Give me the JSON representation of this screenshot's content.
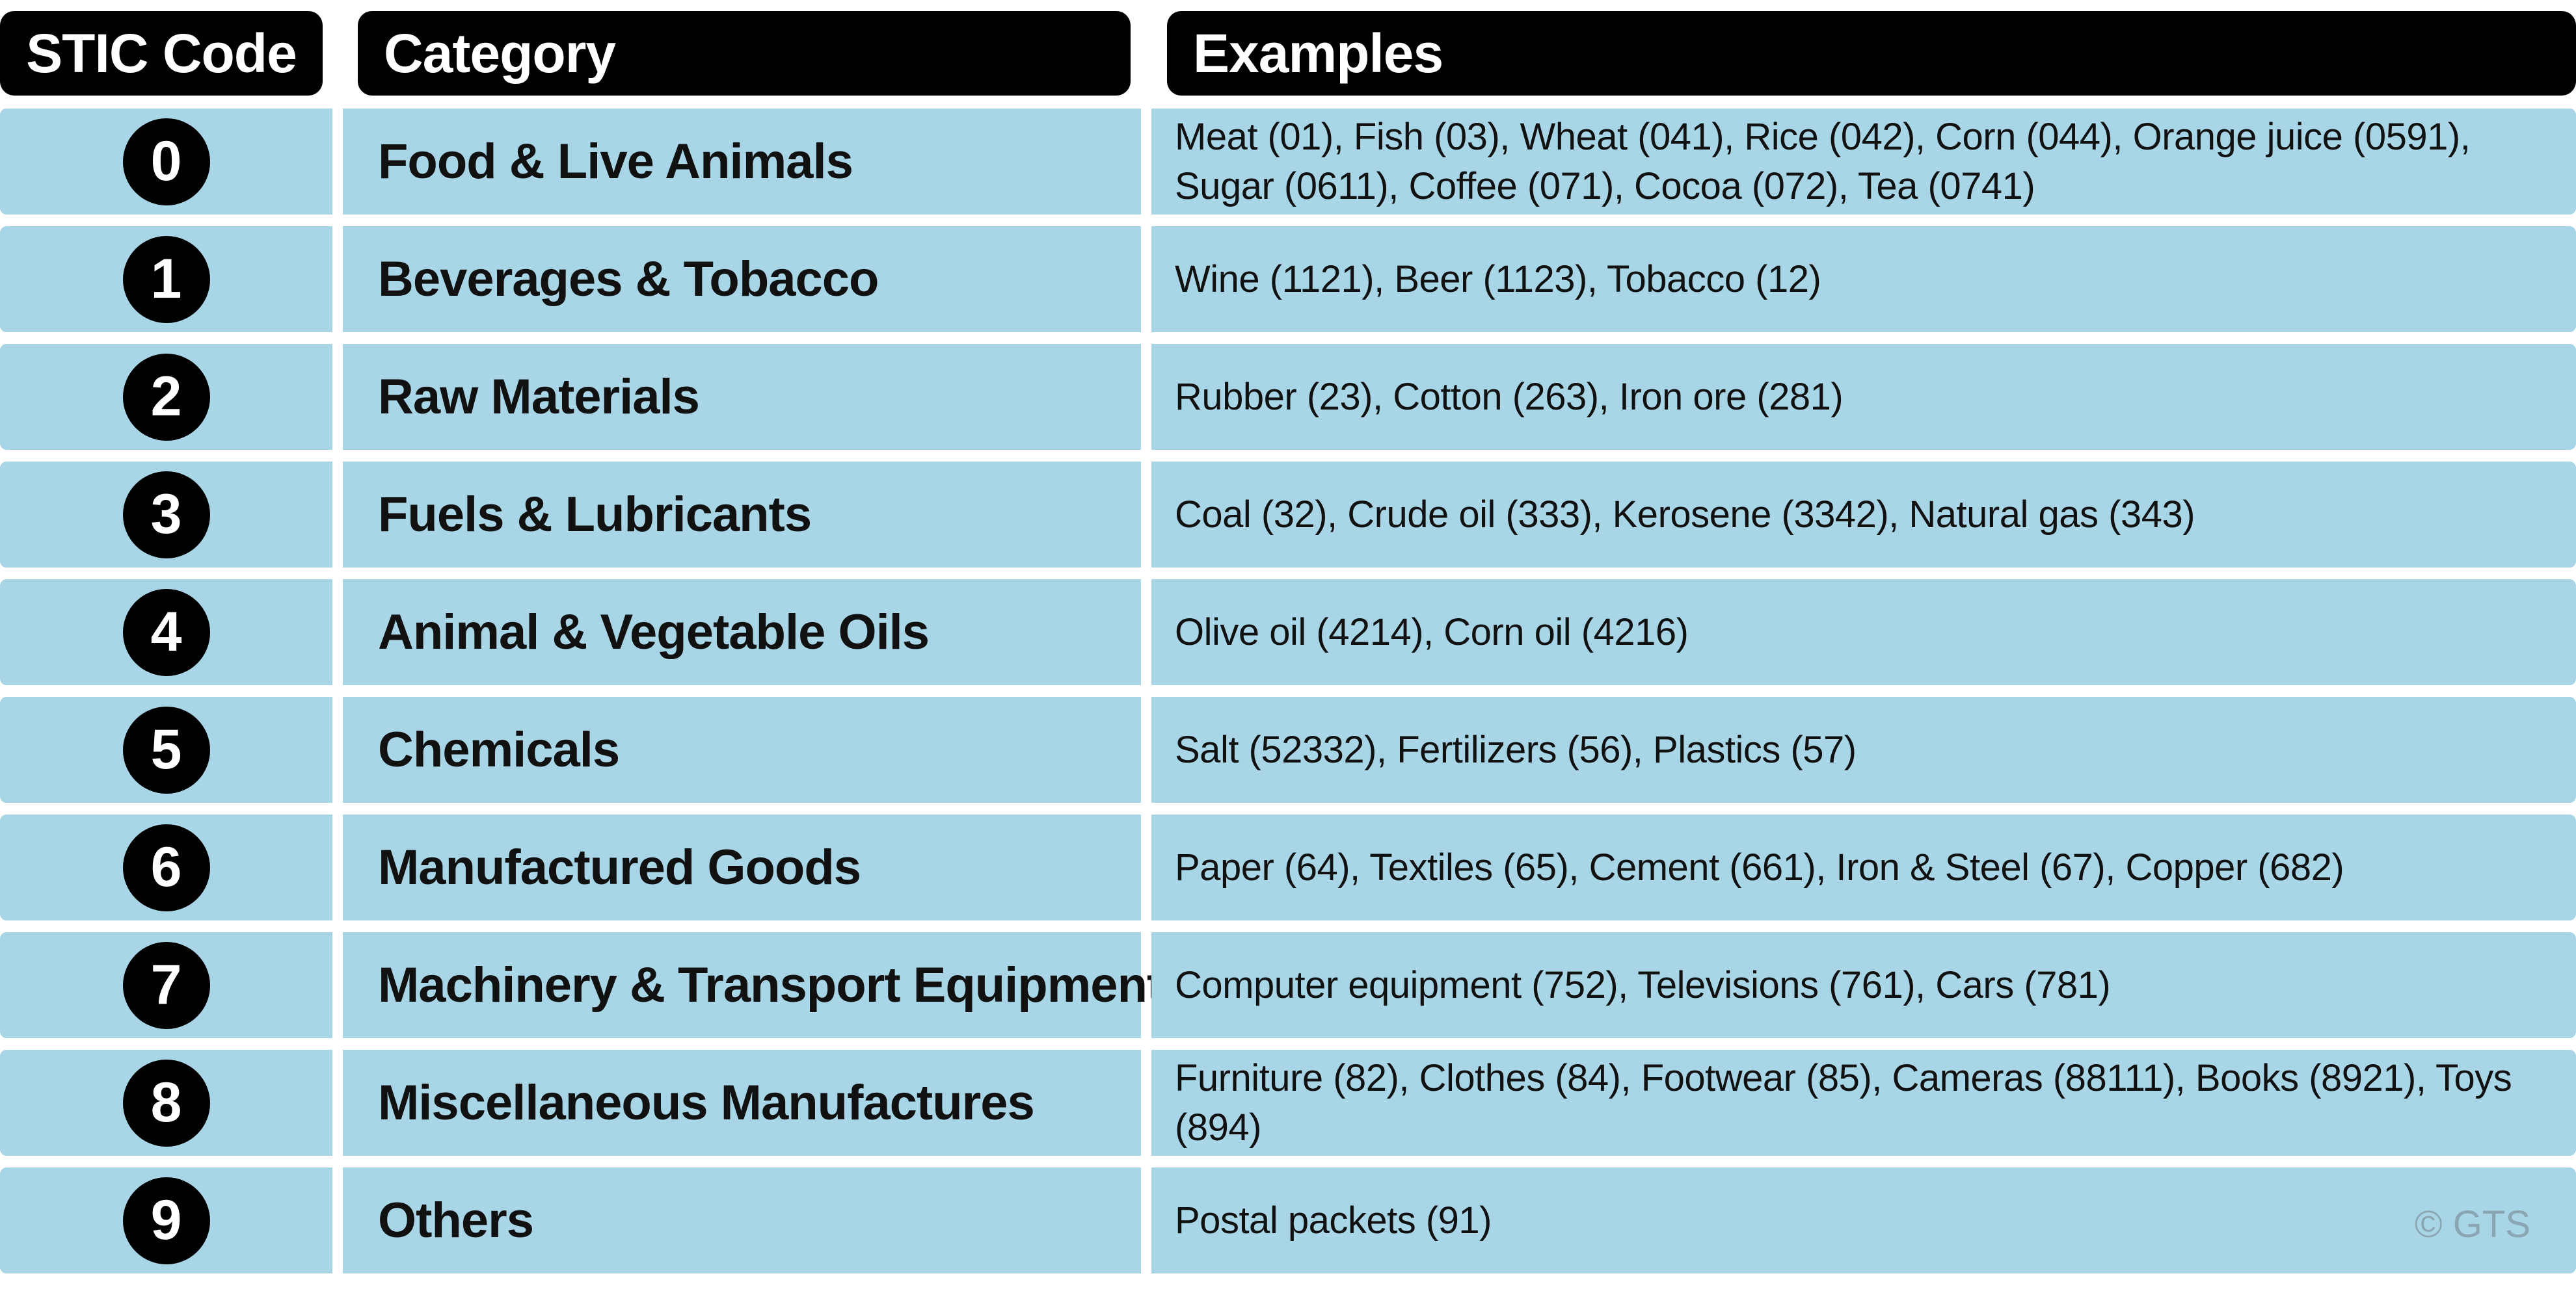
{
  "headers": {
    "code": "STIC Code",
    "category": "Category",
    "examples": "Examples"
  },
  "rows": [
    {
      "code": "0",
      "category": "Food & Live Animals",
      "examples": "Meat (01), Fish (03), Wheat (041), Rice (042), Corn (044), Orange juice (0591), Sugar (0611), Coffee (071), Cocoa (072), Tea (0741)"
    },
    {
      "code": "1",
      "category": "Beverages & Tobacco",
      "examples": "Wine (1121), Beer (1123), Tobacco (12)"
    },
    {
      "code": "2",
      "category": "Raw Materials",
      "examples": "Rubber (23), Cotton (263), Iron ore (281)"
    },
    {
      "code": "3",
      "category": "Fuels & Lubricants",
      "examples": "Coal (32), Crude oil (333), Kerosene (3342), Natural gas (343)"
    },
    {
      "code": "4",
      "category": "Animal & Vegetable Oils",
      "examples": "Olive oil (4214), Corn oil (4216)"
    },
    {
      "code": "5",
      "category": "Chemicals",
      "examples": "Salt (52332), Fertilizers (56), Plastics (57)"
    },
    {
      "code": "6",
      "category": "Manufactured Goods",
      "examples": "Paper (64), Textiles (65), Cement (661), Iron & Steel (67), Copper (682)"
    },
    {
      "code": "7",
      "category": "Machinery & Transport Equipment",
      "examples": "Computer equipment (752), Televisions (761), Cars (781)"
    },
    {
      "code": "8",
      "category": "Miscellaneous Manufactures",
      "examples": "Furniture (82), Clothes (84), Footwear (85), Cameras (88111), Books (8921), Toys (894)"
    },
    {
      "code": "9",
      "category": "Others",
      "examples": "Postal packets (91)"
    }
  ],
  "watermark": "© GTS",
  "colors": {
    "header_bg": "#000000",
    "row_bg": "#a8d6e6",
    "badge_bg": "#000000"
  }
}
